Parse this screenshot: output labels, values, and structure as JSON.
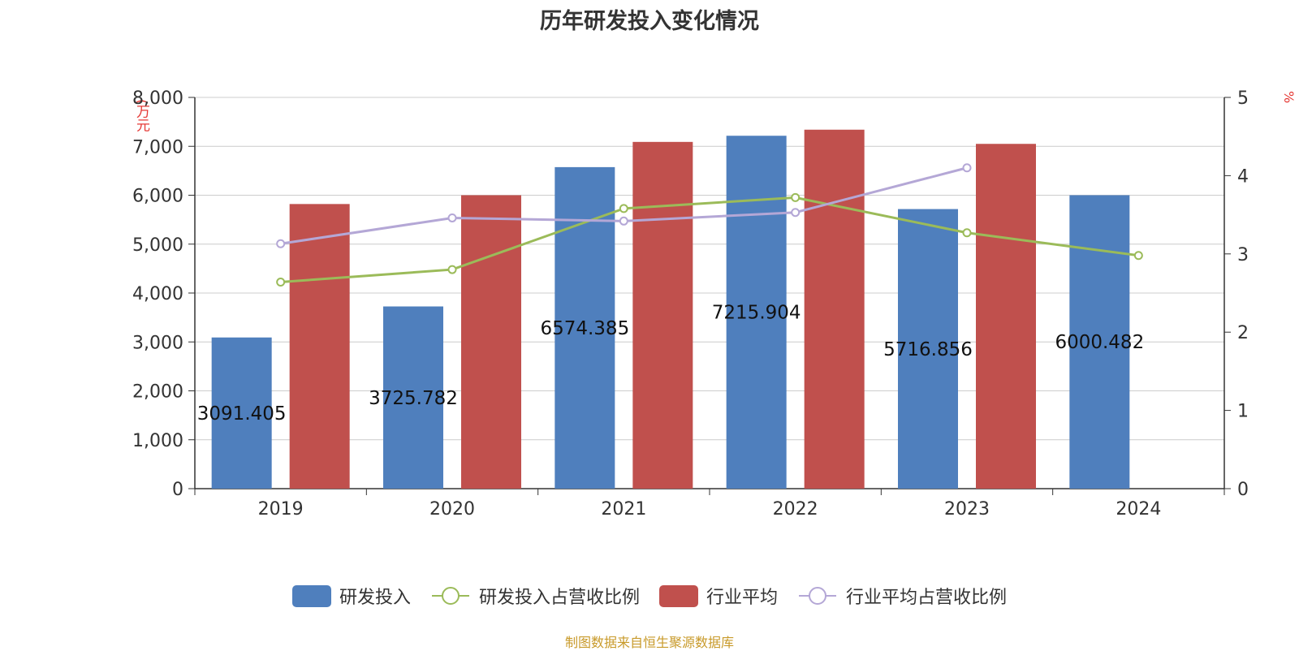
{
  "colors": {
    "rd_investment": "#4f7fbd",
    "industry_avg": "#c0504d",
    "rd_ratio": "#9bbb59",
    "industry_ratio": "#b4a7d6",
    "unit": "#e53935",
    "source": "#c89a2a"
  },
  "chart_data": {
    "type": "bar",
    "title": "历年研发投入变化情况",
    "categories": [
      "2019",
      "2020",
      "2021",
      "2022",
      "2023",
      "2024"
    ],
    "series": [
      {
        "name": "研发投入",
        "kind": "bar",
        "axis": "left",
        "values": [
          3091.405,
          3725.782,
          6574.385,
          7215.904,
          5716.856,
          6000.482
        ],
        "labels": [
          "3091.405",
          "3725.782",
          "6574.385",
          "7215.904",
          "5716.856",
          "6000.482"
        ]
      },
      {
        "name": "研发投入占营收比例",
        "kind": "line",
        "axis": "right",
        "values": [
          2.64,
          2.8,
          3.58,
          3.72,
          3.27,
          2.98
        ]
      },
      {
        "name": "行业平均",
        "kind": "bar",
        "axis": "left",
        "values": [
          5820,
          6000,
          7090,
          7340,
          7050,
          null
        ]
      },
      {
        "name": "行业平均占营收比例",
        "kind": "line",
        "axis": "right",
        "values": [
          3.13,
          3.46,
          3.42,
          3.53,
          4.1,
          null
        ]
      }
    ],
    "y_left": {
      "unit": "(万元",
      "ylim": [
        0,
        8000
      ],
      "ticks": [
        "0",
        "1,000",
        "2,000",
        "3,000",
        "4,000",
        "5,000",
        "6,000",
        "7,000",
        "8,000"
      ]
    },
    "y_right": {
      "unit": "%",
      "ylim": [
        0,
        5
      ],
      "ticks": [
        "0",
        "1",
        "2",
        "3",
        "4",
        "5"
      ]
    },
    "legend": {
      "position": "bottom"
    },
    "grid": true
  },
  "legend_items": [
    {
      "label": "研发投入"
    },
    {
      "label": "研发投入占营收比例"
    },
    {
      "label": "行业平均"
    },
    {
      "label": "行业平均占营收比例"
    }
  ],
  "source_text": "制图数据来自恒生聚源数据库"
}
